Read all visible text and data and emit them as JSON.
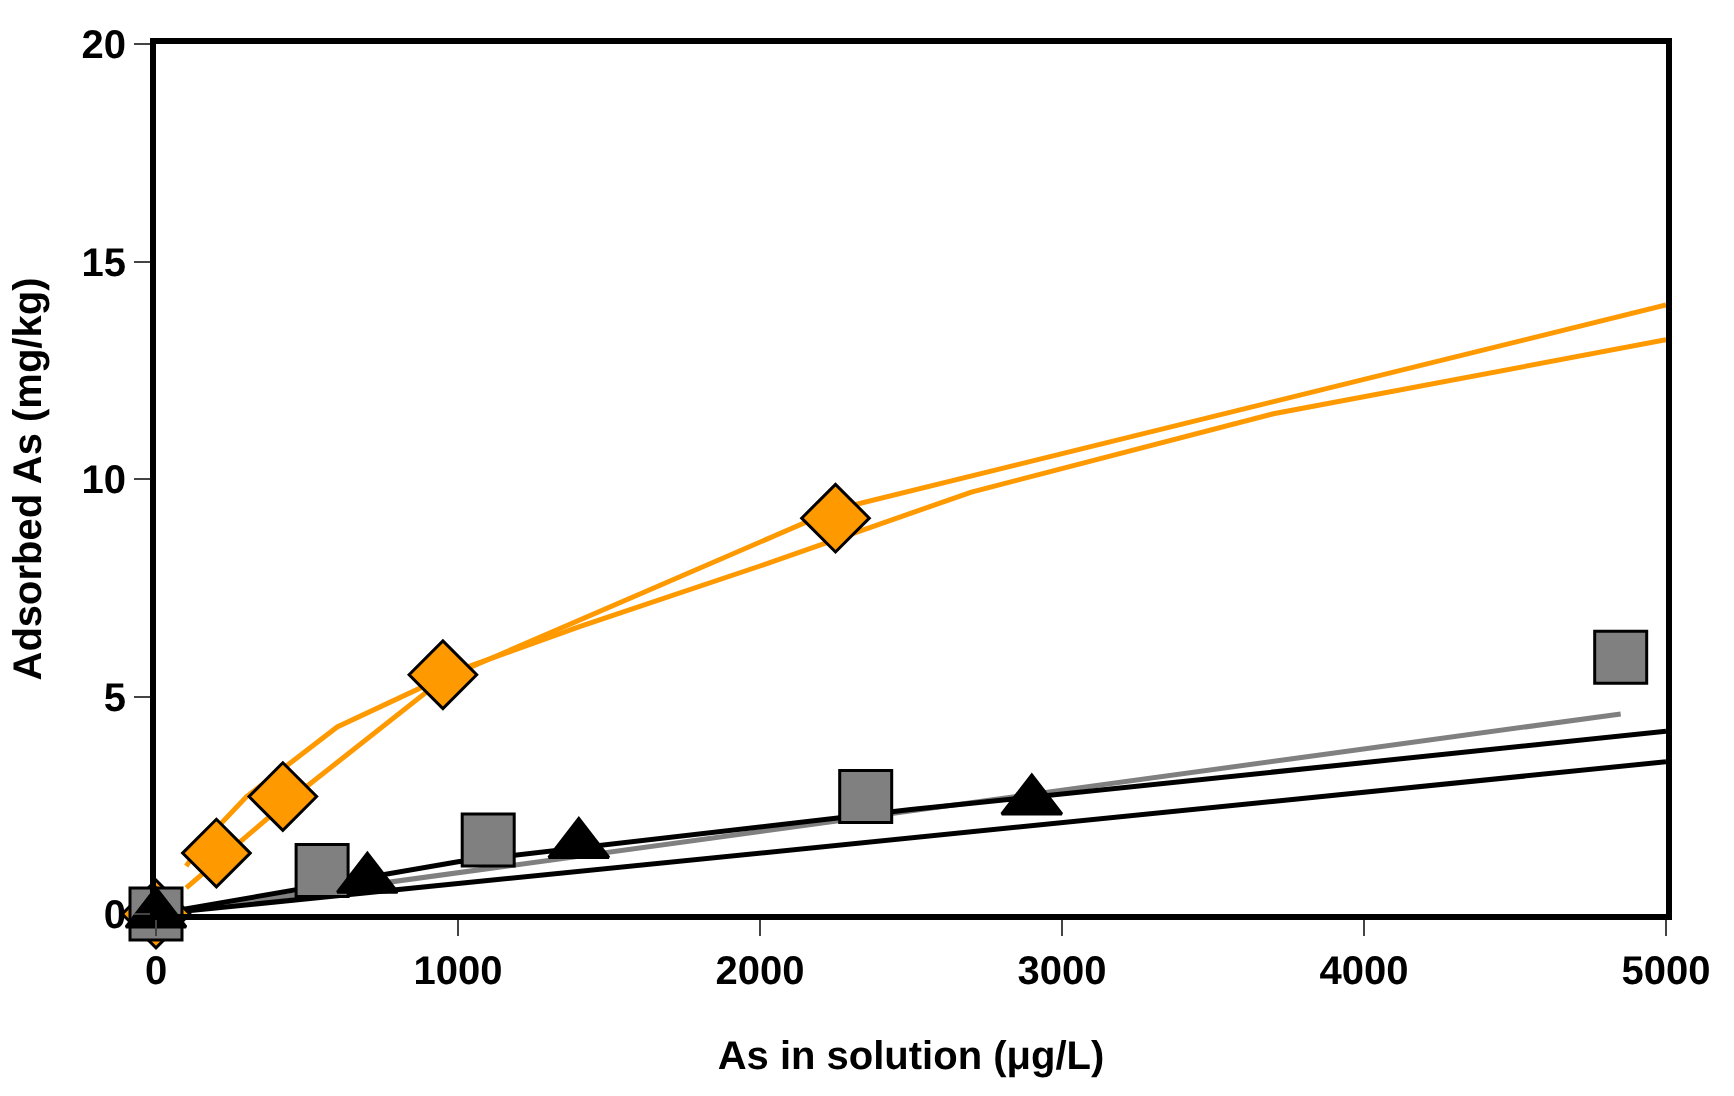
{
  "chart_data": {
    "type": "scatter",
    "xlabel": "As in solution (μg/L)",
    "ylabel": "Adsorbed As (mg/kg)",
    "xlim": [
      0,
      5000
    ],
    "xticks": [
      0,
      1000,
      2000,
      3000,
      4000,
      5000
    ],
    "ylim": [
      0,
      20
    ],
    "yticks": [
      0,
      5,
      10,
      15,
      20
    ],
    "series": [
      {
        "type": "line",
        "color": "#ff9900",
        "marker": "none",
        "x": [
          100,
          150,
          300,
          600,
          1000,
          1400,
          2000,
          2700,
          3700,
          5000
        ],
        "values": [
          1.1,
          1.6,
          2.7,
          4.3,
          5.6,
          6.6,
          8.0,
          9.7,
          11.5,
          13.2
        ]
      },
      {
        "type": "line",
        "color": "#ff9900",
        "marker": "none",
        "x": [
          100,
          420,
          950,
          2250,
          5000
        ],
        "values": [
          0.6,
          2.5,
          5.4,
          9.3,
          14.0
        ]
      },
      {
        "type": "line",
        "color": "#808080",
        "marker": "none",
        "x": [
          0,
          4850
        ],
        "values": [
          0,
          4.6
        ]
      },
      {
        "type": "line",
        "color": "#000000",
        "marker": "none",
        "x": [
          0,
          1000,
          2500,
          5000
        ],
        "values": [
          0,
          1.2,
          2.4,
          4.2
        ]
      },
      {
        "type": "line",
        "color": "#000000",
        "marker": "none",
        "x": [
          0,
          5000
        ],
        "values": [
          0,
          3.5
        ]
      },
      {
        "color": "#ff9900",
        "marker": "diamond",
        "x": [
          0,
          200,
          420,
          950,
          2250
        ],
        "values": [
          0,
          1.4,
          2.7,
          5.5,
          9.1
        ]
      },
      {
        "color": "#808080",
        "marker": "square",
        "x": [
          0,
          550,
          1100,
          2350,
          4850
        ],
        "values": [
          0,
          1.0,
          1.7,
          2.7,
          5.9
        ]
      },
      {
        "color": "#000000",
        "marker": "triangle",
        "x": [
          0,
          700,
          1400,
          2900
        ],
        "values": [
          0,
          0.8,
          1.6,
          2.6
        ]
      }
    ]
  }
}
